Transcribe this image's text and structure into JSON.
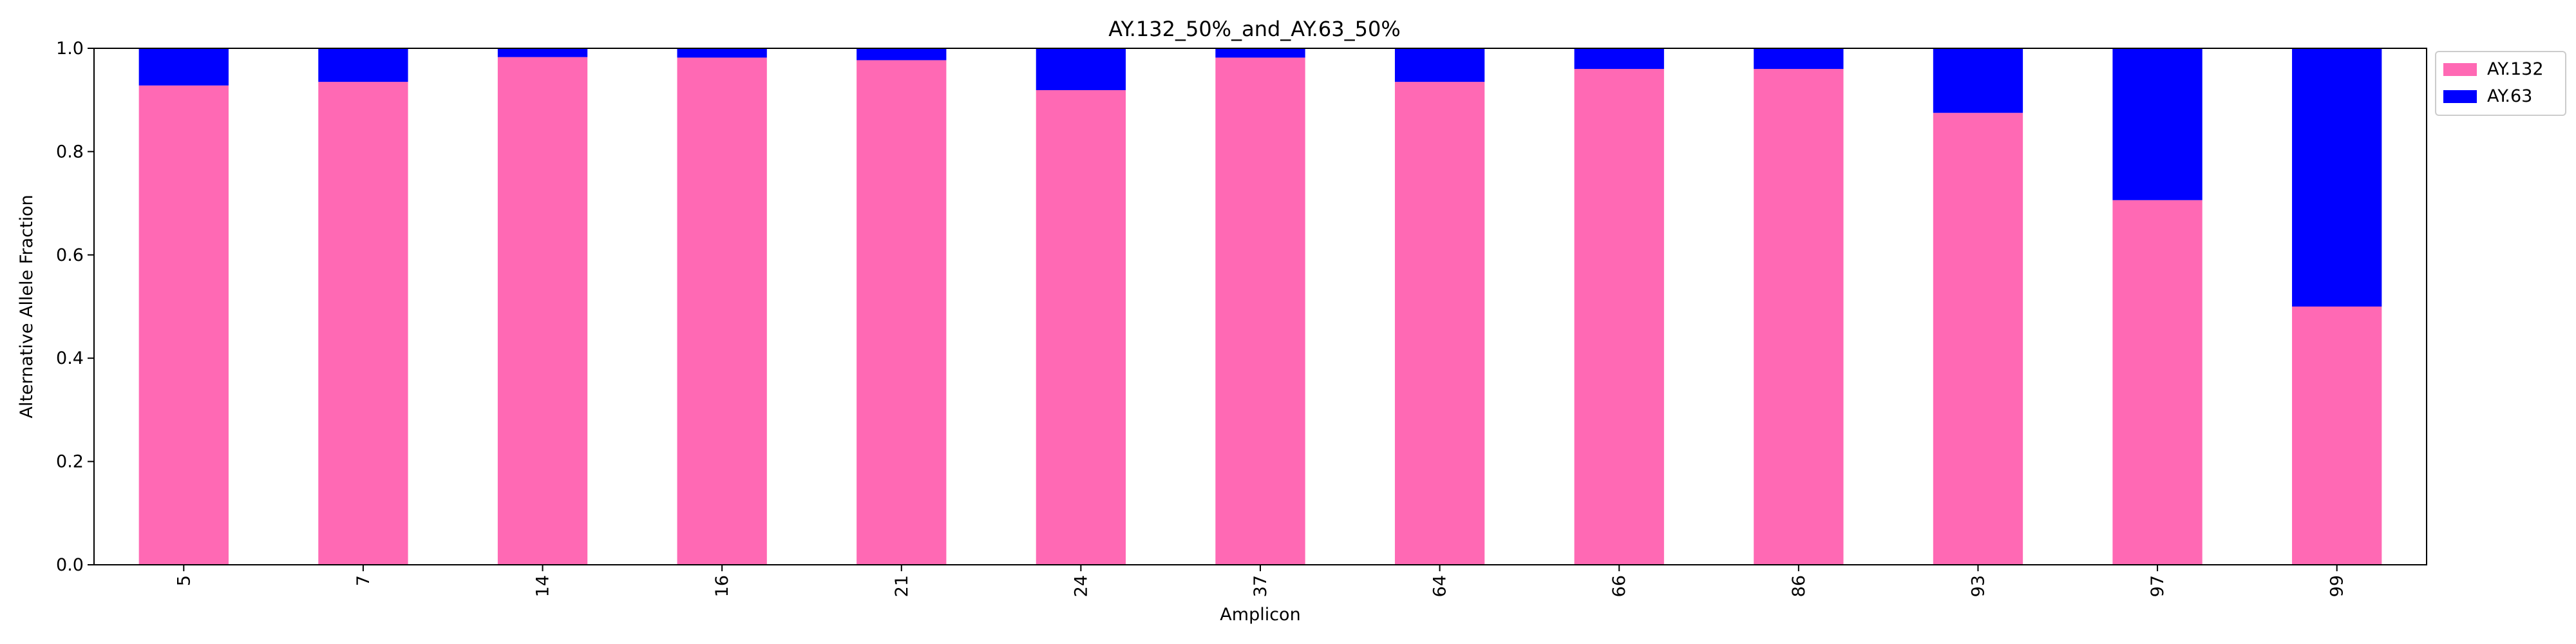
{
  "chart_data": {
    "type": "bar",
    "stacked": true,
    "title": "AY.132_50%_and_AY.63_50%",
    "xlabel": "Amplicon",
    "ylabel": "Alternative Allele Fraction",
    "ylim": [
      0,
      1.0
    ],
    "yticks": [
      "0.0",
      "0.2",
      "0.4",
      "0.6",
      "0.8",
      "1.0"
    ],
    "grid": false,
    "legend_position": "upper-right-outside",
    "categories": [
      "5",
      "7",
      "14",
      "16",
      "21",
      "24",
      "37",
      "64",
      "66",
      "86",
      "93",
      "97",
      "99"
    ],
    "series": [
      {
        "name": "AY.132",
        "color": "#ff69b4",
        "values": [
          0.928,
          0.935,
          0.983,
          0.982,
          0.977,
          0.919,
          0.982,
          0.935,
          0.96,
          0.96,
          0.875,
          0.706,
          0.5
        ]
      },
      {
        "name": "AY.63",
        "color": "#0000ff",
        "values": [
          0.072,
          0.065,
          0.017,
          0.018,
          0.023,
          0.081,
          0.018,
          0.065,
          0.04,
          0.04,
          0.125,
          0.294,
          0.5
        ]
      }
    ]
  }
}
